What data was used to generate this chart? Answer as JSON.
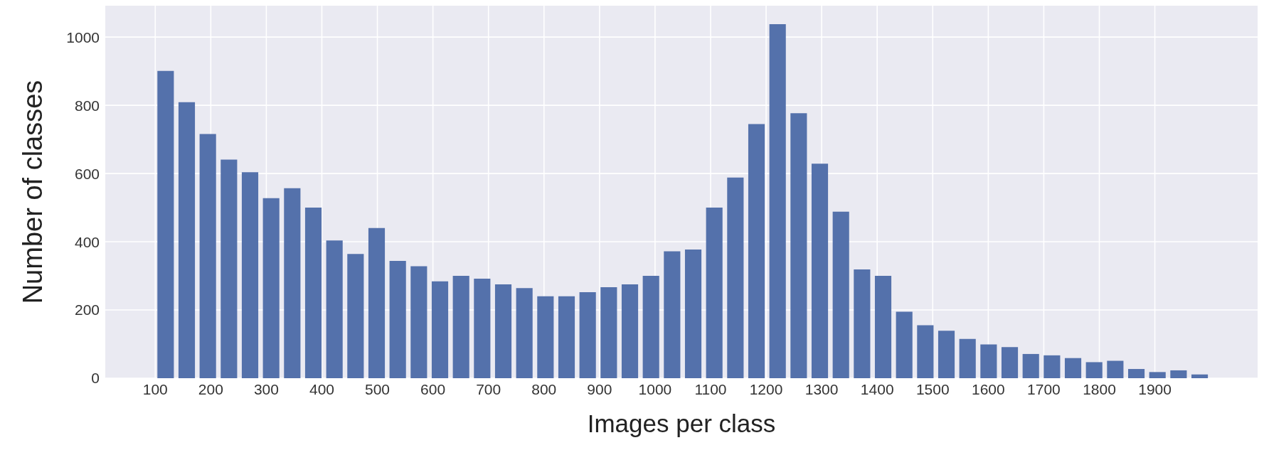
{
  "chart_data": {
    "type": "histogram",
    "xlabel": "Images per class",
    "ylabel": "Number of classes",
    "bins": [
      100,
      138,
      176,
      214,
      252,
      290,
      328,
      366,
      404,
      442,
      480,
      518,
      556,
      594,
      632,
      670,
      708,
      746,
      784,
      822,
      860,
      898,
      936,
      974,
      1012,
      1050,
      1088,
      1126,
      1164,
      1202,
      1240,
      1278,
      1316,
      1354,
      1392,
      1430,
      1468,
      1506,
      1544,
      1582,
      1620,
      1658,
      1696,
      1734,
      1772,
      1810,
      1848,
      1886,
      1924,
      1962,
      2000
    ],
    "values": [
      901,
      809,
      716,
      641,
      604,
      528,
      557,
      500,
      404,
      364,
      440,
      344,
      328,
      284,
      300,
      292,
      275,
      264,
      240,
      240,
      252,
      267,
      275,
      300,
      372,
      377,
      500,
      588,
      745,
      1038,
      777,
      629,
      488,
      319,
      300,
      195,
      155,
      139,
      115,
      99,
      91,
      71,
      67,
      59,
      47,
      51,
      27,
      18,
      23,
      11
    ],
    "color": "#5471ab",
    "xlim": [
      10,
      2085
    ],
    "xticks": [
      100,
      200,
      300,
      400,
      500,
      600,
      700,
      800,
      900,
      1000,
      1100,
      1200,
      1300,
      1400,
      1500,
      1600,
      1700,
      1800,
      1900
    ],
    "ylim": [
      0,
      1092
    ],
    "yticks": [
      0,
      200,
      400,
      600,
      800,
      1000
    ],
    "grid": true
  }
}
